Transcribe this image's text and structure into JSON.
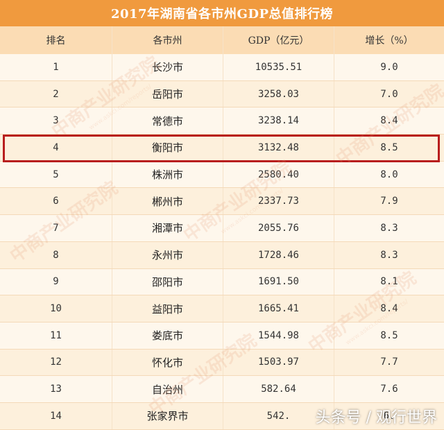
{
  "title": "2017年湖南省各市州GDP总值排行榜",
  "headers": [
    "排名",
    "各市州",
    "GDP（亿元）",
    "增长（%）"
  ],
  "rows": [
    {
      "rank": "1",
      "city": "长沙市",
      "gdp": "10535.51",
      "growth": "9.0"
    },
    {
      "rank": "2",
      "city": "岳阳市",
      "gdp": "3258.03",
      "growth": "7.0"
    },
    {
      "rank": "3",
      "city": "常德市",
      "gdp": "3238.14",
      "growth": "8.4"
    },
    {
      "rank": "4",
      "city": "衡阳市",
      "gdp": "3132.48",
      "growth": "8.5"
    },
    {
      "rank": "5",
      "city": "株洲市",
      "gdp": "2580.40",
      "growth": "8.0"
    },
    {
      "rank": "6",
      "city": "郴州市",
      "gdp": "2337.73",
      "growth": "7.9"
    },
    {
      "rank": "7",
      "city": "湘潭市",
      "gdp": "2055.76",
      "growth": "8.3"
    },
    {
      "rank": "8",
      "city": "永州市",
      "gdp": "1728.46",
      "growth": "8.3"
    },
    {
      "rank": "9",
      "city": "邵阳市",
      "gdp": "1691.50",
      "growth": "8.1"
    },
    {
      "rank": "10",
      "city": "益阳市",
      "gdp": "1665.41",
      "growth": "8.4"
    },
    {
      "rank": "11",
      "city": "娄底市",
      "gdp": "1544.98",
      "growth": "8.5"
    },
    {
      "rank": "12",
      "city": "怀化市",
      "gdp": "1503.97",
      "growth": "7.7"
    },
    {
      "rank": "13",
      "city": "自治州",
      "gdp": "582.64",
      "growth": "7.6"
    },
    {
      "rank": "14",
      "city": "张家界市",
      "gdp": "542.",
      "growth": "6."
    }
  ],
  "highlighted_rank": "4",
  "watermark": {
    "text": "中商产业研究院",
    "sub": "www.askci.com/reports/"
  },
  "corner_watermark": "头条号 / 观行世界",
  "colors": {
    "title_bg": "#f09a3e",
    "header_bg": "#fbdcb4",
    "highlight": "#b81d1d"
  }
}
